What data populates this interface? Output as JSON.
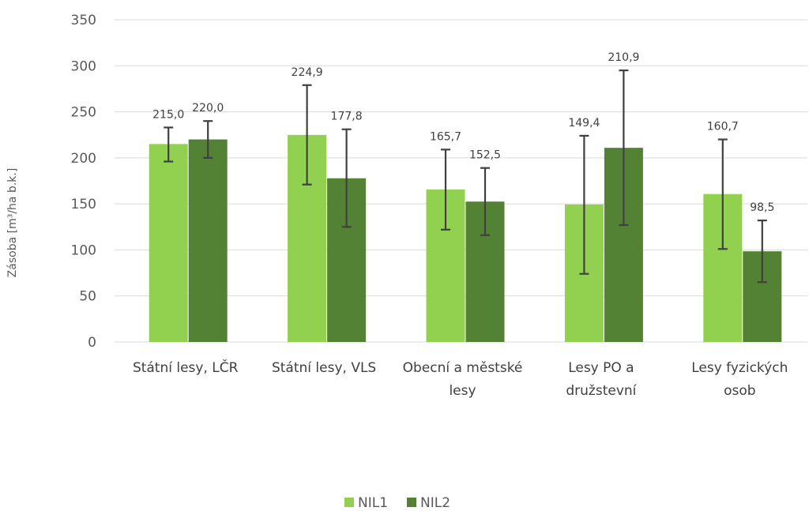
{
  "chart_data": {
    "type": "bar",
    "title": "",
    "xlabel": "",
    "ylabel": "Zásoba [m³/ha b.k.]",
    "ylim": [
      0,
      350
    ],
    "yticks": [
      0,
      50,
      100,
      150,
      200,
      250,
      300,
      350
    ],
    "grid": true,
    "legend_position": "bottom",
    "categories": [
      [
        "Státní lesy, LČR"
      ],
      [
        "Státní lesy, VLS"
      ],
      [
        "Obecní a městské",
        "lesy"
      ],
      [
        "Lesy PO a",
        "družstevní"
      ],
      [
        "Lesy fyzických",
        "osob"
      ]
    ],
    "series": [
      {
        "name": "NIL1",
        "color": "#92d050",
        "values": [
          215.0,
          224.9,
          165.7,
          149.4,
          160.7
        ],
        "labels": [
          "215,0",
          "224,9",
          "165,7",
          "149,4",
          "160,7"
        ],
        "error_low": [
          196,
          171,
          122,
          74,
          101
        ],
        "error_high": [
          233,
          279,
          209,
          224,
          220
        ]
      },
      {
        "name": "NIL2",
        "color": "#548235",
        "values": [
          220.0,
          177.8,
          152.5,
          210.9,
          98.5
        ],
        "labels": [
          "220,0",
          "177,8",
          "152,5",
          "210,9",
          "98,5"
        ],
        "error_low": [
          200,
          125,
          116,
          127,
          65
        ],
        "error_high": [
          240,
          231,
          189,
          295,
          132
        ]
      }
    ]
  }
}
